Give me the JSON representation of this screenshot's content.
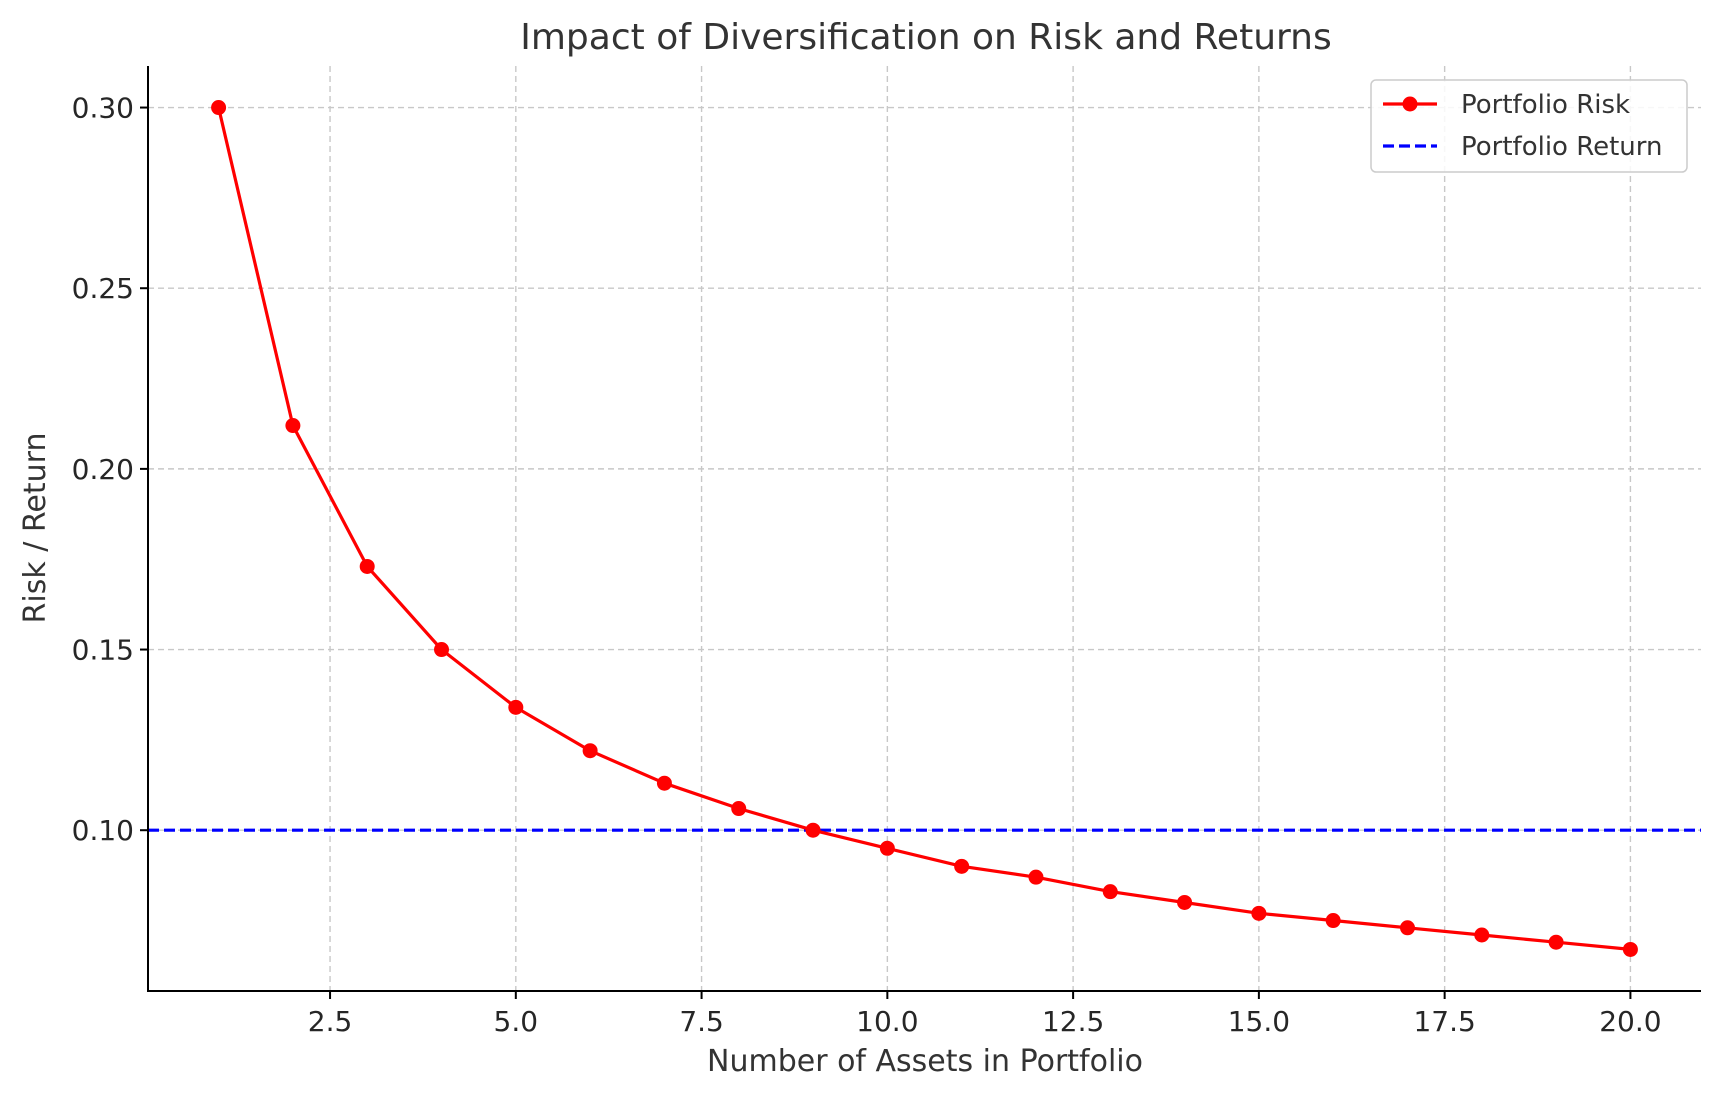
{
  "chart_data": {
    "type": "line",
    "title": "Impact of Diversification on Risk and Returns",
    "xlabel": "Number of Assets in Portfolio",
    "ylabel": "Risk / Return",
    "xlim": [
      0.05,
      20.95
    ],
    "ylim": [
      0.0555,
      0.3115
    ],
    "x_ticks": [
      2.5,
      5.0,
      7.5,
      10.0,
      12.5,
      15.0,
      17.5,
      20.0
    ],
    "x_tick_labels": [
      "2.5",
      "5.0",
      "7.5",
      "10.0",
      "12.5",
      "15.0",
      "17.5",
      "20.0"
    ],
    "y_ticks": [
      0.1,
      0.15,
      0.2,
      0.25,
      0.3
    ],
    "y_tick_labels": [
      "0.10",
      "0.15",
      "0.20",
      "0.25",
      "0.30"
    ],
    "grid": true,
    "legend_position": "top-right",
    "series": [
      {
        "name": "Portfolio Risk",
        "style": "solid-line-with-markers",
        "color": "#ff0000",
        "x": [
          1,
          2,
          3,
          4,
          5,
          6,
          7,
          8,
          9,
          10,
          11,
          12,
          13,
          14,
          15,
          16,
          17,
          18,
          19,
          20
        ],
        "values": [
          0.3,
          0.212,
          0.173,
          0.15,
          0.134,
          0.122,
          0.113,
          0.106,
          0.1,
          0.095,
          0.09,
          0.087,
          0.083,
          0.08,
          0.077,
          0.075,
          0.073,
          0.071,
          0.069,
          0.067
        ]
      },
      {
        "name": "Portfolio Return",
        "style": "dashed-horizontal-line",
        "color": "#0000ff",
        "y": 0.1
      }
    ]
  }
}
